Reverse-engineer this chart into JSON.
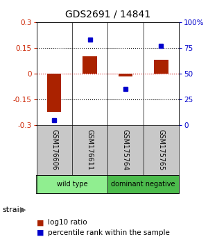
{
  "title": "GDS2691 / 14841",
  "samples": [
    "GSM176606",
    "GSM176611",
    "GSM175764",
    "GSM175765"
  ],
  "log10_ratio": [
    -0.22,
    0.1,
    -0.015,
    0.08
  ],
  "percentile_rank": [
    5,
    83,
    35,
    77
  ],
  "groups": [
    {
      "name": "wild type",
      "samples": [
        0,
        1
      ],
      "color": "#90EE90"
    },
    {
      "name": "dominant negative",
      "samples": [
        2,
        3
      ],
      "color": "#4CBB4C"
    }
  ],
  "ylim_left": [
    -0.3,
    0.3
  ],
  "ylim_right": [
    0,
    100
  ],
  "yticks_left": [
    -0.3,
    -0.15,
    0,
    0.15,
    0.3
  ],
  "yticks_right": [
    0,
    25,
    50,
    75,
    100
  ],
  "ytick_labels_left": [
    "-0.3",
    "-0.15",
    "0",
    "0.15",
    "0.3"
  ],
  "ytick_labels_right": [
    "0",
    "25",
    "50",
    "75",
    "100%"
  ],
  "bar_color": "#AA2200",
  "dot_color": "#0000CC",
  "background_color": "#ffffff",
  "title_fontsize": 10,
  "tick_fontsize": 7.5,
  "sample_label_fontsize": 7,
  "group_label_fontsize": 7,
  "legend_fontsize": 7.5
}
